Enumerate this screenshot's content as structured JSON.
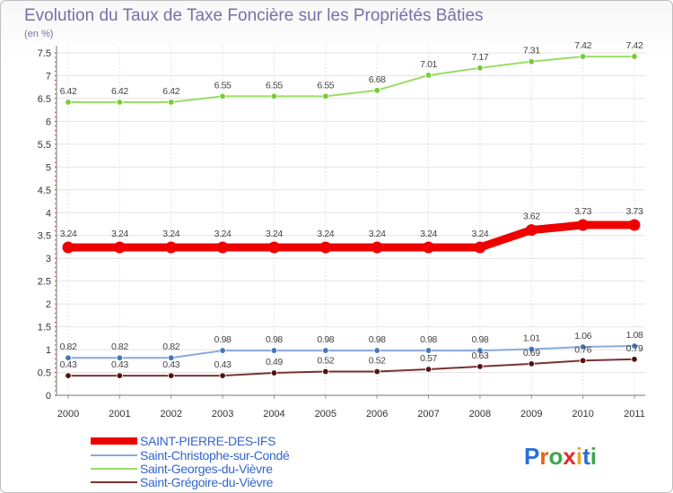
{
  "chart_data": {
    "type": "line",
    "title": "Evolution du Taux de Taxe Foncière sur les Propriétés Bâties",
    "subtitle": "(en %)",
    "xlabel": "",
    "ylabel": "(en %)",
    "ylim": [
      0,
      7.5
    ],
    "y_ticks": [
      "0",
      "0.5",
      "1",
      "1.5",
      "2",
      "2.5",
      "3",
      "3.5",
      "4",
      "4.5",
      "5",
      "5.5",
      "6",
      "6.5",
      "7",
      "7.5"
    ],
    "categories": [
      "2000",
      "2001",
      "2002",
      "2003",
      "2004",
      "2005",
      "2006",
      "2007",
      "2008",
      "2009",
      "2010",
      "2011"
    ],
    "grid": true,
    "legend_position": "bottom-left",
    "series": [
      {
        "name": "Saint-Georges-du-Vièvre",
        "color": "#99dd66",
        "point_color": "#77cc33",
        "values": [
          6.42,
          6.42,
          6.42,
          6.55,
          6.55,
          6.55,
          6.68,
          7.01,
          7.17,
          7.31,
          7.42,
          7.42
        ],
        "labels": [
          "6.42",
          "6.42",
          "6.42",
          "6.55",
          "6.55",
          "6.55",
          "6.68",
          "7.01",
          "7.17",
          "7.31",
          "7.42",
          "7.42"
        ]
      },
      {
        "name": "SAINT-PIERRE-DES-IFS",
        "color": "#ee0000",
        "point_color": "#ee0000",
        "values": [
          3.24,
          3.24,
          3.24,
          3.24,
          3.24,
          3.24,
          3.24,
          3.24,
          3.24,
          3.62,
          3.73,
          3.73
        ],
        "labels": [
          "3.24",
          "3.24",
          "3.24",
          "3.24",
          "3.24",
          "3.24",
          "3.24",
          "3.24",
          "3.24",
          "3.62",
          "3.73",
          "3.73"
        ]
      },
      {
        "name": "Saint-Christophe-sur-Condé",
        "color": "#88aadd",
        "point_color": "#4477bb",
        "values": [
          0.82,
          0.82,
          0.82,
          0.98,
          0.98,
          0.98,
          0.98,
          0.98,
          0.98,
          1.01,
          1.06,
          1.08
        ],
        "labels": [
          "0.82",
          "0.82",
          "0.82",
          "0.98",
          "0.98",
          "0.98",
          "0.98",
          "0.98",
          "0.98",
          "1.01",
          "1.06",
          "1.08"
        ]
      },
      {
        "name": "Saint-Grégoire-du-Vièvre",
        "color": "#773333",
        "point_color": "#551111",
        "values": [
          0.43,
          0.43,
          0.43,
          0.43,
          0.49,
          0.52,
          0.52,
          0.57,
          0.63,
          0.69,
          0.76,
          0.79
        ],
        "labels": [
          "0.43",
          "0.43",
          "0.43",
          "0.43",
          "0.49",
          "0.52",
          "0.52",
          "0.57",
          "0.63",
          "0.69",
          "0.76",
          "0.79"
        ]
      }
    ],
    "legend": [
      {
        "name": "SAINT-PIERRE-DES-IFS",
        "color": "#ee0000"
      },
      {
        "name": "Saint-Christophe-sur-Condé",
        "color": "#88aadd"
      },
      {
        "name": "Saint-Georges-du-Vièvre",
        "color": "#99dd66"
      },
      {
        "name": "Saint-Grégoire-du-Vièvre",
        "color": "#773333"
      }
    ]
  },
  "branding": {
    "logo_text": "Proxiti"
  }
}
